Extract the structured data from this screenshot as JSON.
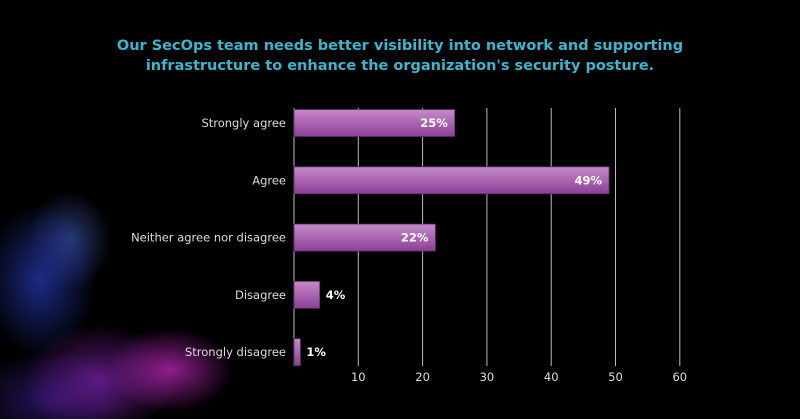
{
  "chart_data": {
    "type": "bar",
    "orientation": "horizontal",
    "title": "Our SecOps team needs better visibility into network and supporting infrastructure to enhance the organization's security posture.",
    "title_lines": [
      "Our SecOps team needs better visibility into network and supporting",
      "infrastructure to enhance the organization's security posture."
    ],
    "categories": [
      "Strongly agree",
      "Agree",
      "Neither agree nor disagree",
      "Disagree",
      "Strongly disagree"
    ],
    "values": [
      25,
      49,
      22,
      4,
      1
    ],
    "labels": [
      "25%",
      "49%",
      "22%",
      "4%",
      "1%"
    ],
    "xticks": [
      10,
      20,
      30,
      40,
      50,
      60
    ],
    "xlim": [
      0,
      60
    ],
    "grid": true,
    "xlabel": "",
    "ylabel": "",
    "colors": {
      "bar_top": "#c27fc4",
      "bar_bottom": "#8a3e95",
      "title": "#3ab6cf"
    }
  }
}
